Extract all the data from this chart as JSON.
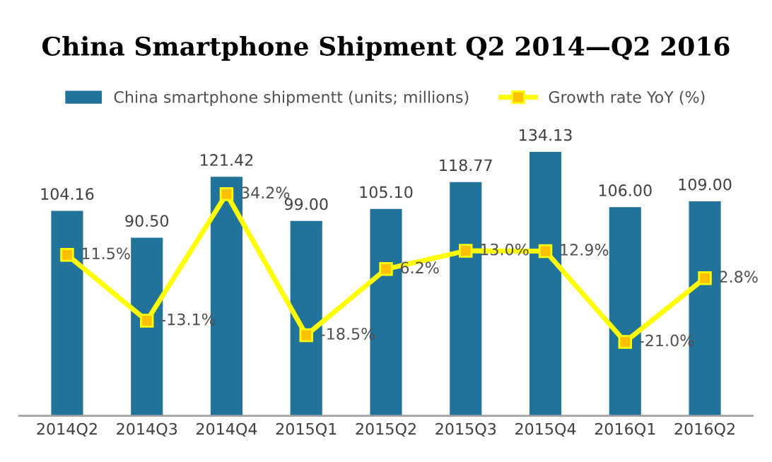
{
  "chart_data": {
    "type": "bar",
    "title": "China Smartphone Shipment Q2 2014—Q2 2016",
    "categories": [
      "2014Q2",
      "2014Q3",
      "2014Q4",
      "2015Q1",
      "2015Q2",
      "2015Q3",
      "2015Q4",
      "2016Q1",
      "2016Q2"
    ],
    "series": [
      {
        "name": "China smartphone shipmentt (units; millions)",
        "color": "#22739a",
        "values": [
          104.16,
          90.5,
          121.42,
          99.0,
          105.1,
          118.77,
          134.13,
          106.0,
          109.0
        ],
        "value_labels": [
          "104.16",
          "90.50",
          "121.42",
          "99.00",
          "105.10",
          "118.77",
          "134.13",
          "106.00",
          "109.00"
        ]
      },
      {
        "name": "Growth rate YoY (%)",
        "type": "line",
        "axis": "y2",
        "color": "#ffff00",
        "marker": "square",
        "values": [
          11.5,
          -13.1,
          34.2,
          -18.5,
          6.2,
          13.0,
          12.9,
          -21.0,
          2.8
        ],
        "value_labels": [
          "11.5%",
          "-13.1%",
          "34.2%",
          "-18.5%",
          "6.2%",
          "13.0%",
          "12.9%",
          "-21.0%",
          "2.8%"
        ]
      }
    ],
    "tick_labels": "x",
    "legend": "top",
    "grid": false
  }
}
